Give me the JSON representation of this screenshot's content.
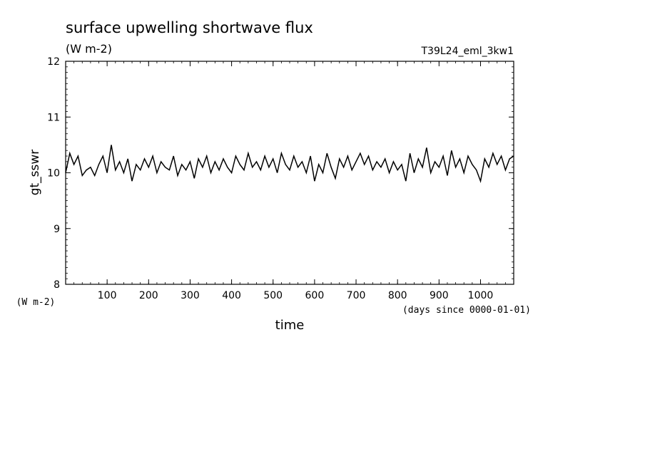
{
  "chart_data": {
    "type": "line",
    "title": "surface upwelling shortwave flux",
    "subtitle": "(W m-2)",
    "run_label": "T39L24_eml_3kw1",
    "ylabel": "gt_sswr",
    "yunit": "(W m-2)",
    "xlabel": "time",
    "xunit": "(days since 0000-01-01)",
    "xlim": [
      0,
      1080
    ],
    "ylim": [
      8,
      12
    ],
    "x_ticks": [
      100,
      200,
      300,
      400,
      500,
      600,
      700,
      800,
      900,
      1000
    ],
    "y_ticks": [
      8,
      9,
      10,
      11,
      12
    ],
    "grid": false,
    "series": [
      {
        "x": [
          0,
          10,
          20,
          30,
          40,
          50,
          60,
          70,
          80,
          90,
          100,
          110,
          120,
          130,
          140,
          150,
          160,
          170,
          180,
          190,
          200,
          210,
          220,
          230,
          240,
          250,
          260,
          270,
          280,
          290,
          300,
          310,
          320,
          330,
          340,
          350,
          360,
          370,
          380,
          390,
          400,
          410,
          420,
          430,
          440,
          450,
          460,
          470,
          480,
          490,
          500,
          510,
          520,
          530,
          540,
          550,
          560,
          570,
          580,
          590,
          600,
          610,
          620,
          630,
          640,
          650,
          660,
          670,
          680,
          690,
          700,
          710,
          720,
          730,
          740,
          750,
          760,
          770,
          780,
          790,
          800,
          810,
          820,
          830,
          840,
          850,
          860,
          870,
          880,
          890,
          900,
          910,
          920,
          930,
          940,
          950,
          960,
          970,
          980,
          990,
          1000,
          1010,
          1020,
          1030,
          1040,
          1050,
          1060,
          1070,
          1080
        ],
        "y": [
          10.0,
          10.35,
          10.15,
          10.3,
          9.95,
          10.05,
          10.1,
          9.95,
          10.15,
          10.3,
          10.0,
          10.5,
          10.05,
          10.2,
          10.0,
          10.25,
          9.85,
          10.15,
          10.05,
          10.25,
          10.1,
          10.3,
          10.0,
          10.2,
          10.1,
          10.05,
          10.3,
          9.95,
          10.15,
          10.05,
          10.2,
          9.9,
          10.25,
          10.1,
          10.3,
          10.0,
          10.2,
          10.05,
          10.25,
          10.1,
          10.0,
          10.3,
          10.15,
          10.05,
          10.35,
          10.1,
          10.2,
          10.05,
          10.3,
          10.1,
          10.25,
          10.0,
          10.35,
          10.15,
          10.05,
          10.3,
          10.1,
          10.2,
          10.0,
          10.3,
          9.85,
          10.15,
          10.0,
          10.35,
          10.1,
          9.9,
          10.25,
          10.1,
          10.3,
          10.05,
          10.2,
          10.35,
          10.15,
          10.3,
          10.05,
          10.2,
          10.1,
          10.25,
          10.0,
          10.2,
          10.05,
          10.15,
          9.85,
          10.35,
          10.0,
          10.25,
          10.1,
          10.45,
          10.0,
          10.2,
          10.1,
          10.3,
          9.95,
          10.4,
          10.1,
          10.25,
          10.0,
          10.3,
          10.15,
          10.05,
          9.85,
          10.25,
          10.1,
          10.35,
          10.15,
          10.3,
          10.05,
          10.25,
          10.3
        ]
      }
    ]
  }
}
